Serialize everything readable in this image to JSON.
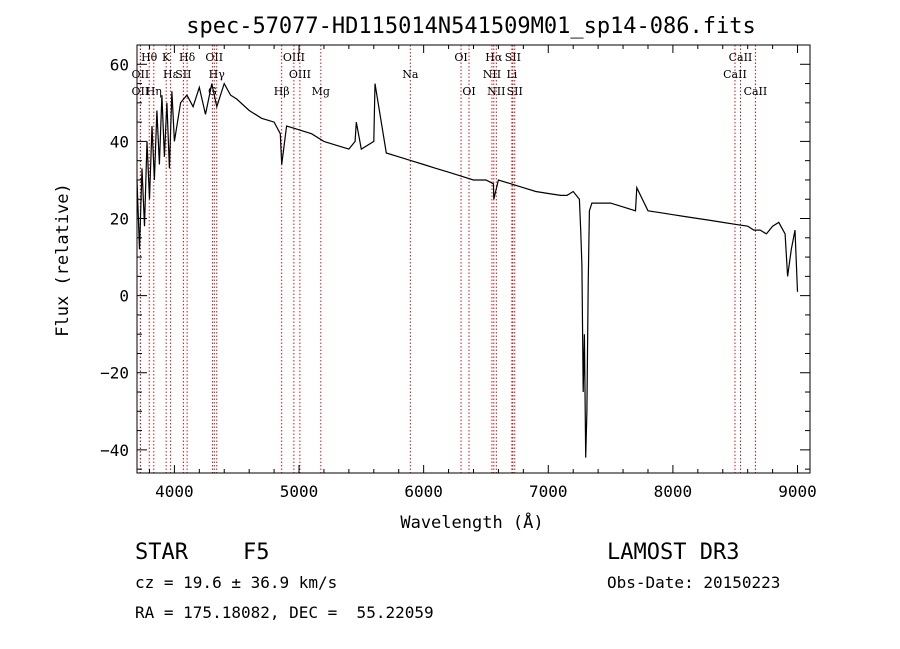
{
  "chart_data": {
    "type": "line",
    "title": "spec-57077-HD115014N541509M01_sp14-086.fits",
    "xlabel": "Wavelength (Å)",
    "ylabel": "Flux (relative)",
    "xlim": [
      3700,
      9100
    ],
    "ylim": [
      -46,
      65
    ],
    "xticks": [
      4000,
      5000,
      6000,
      7000,
      8000,
      9000
    ],
    "yticks": [
      -40,
      -20,
      0,
      20,
      40,
      60
    ],
    "grid": false,
    "series": [
      {
        "name": "flux",
        "x": [
          3700,
          3720,
          3740,
          3760,
          3780,
          3800,
          3820,
          3840,
          3860,
          3880,
          3900,
          3920,
          3940,
          3960,
          3980,
          4000,
          4050,
          4100,
          4150,
          4200,
          4250,
          4300,
          4340,
          4400,
          4450,
          4500,
          4600,
          4700,
          4800,
          4850,
          4861,
          4900,
          5000,
          5100,
          5200,
          5300,
          5400,
          5450,
          5460,
          5500,
          5600,
          5610,
          5700,
          5800,
          5900,
          6000,
          6100,
          6200,
          6300,
          6400,
          6500,
          6560,
          6563,
          6600,
          6700,
          6800,
          6900,
          7000,
          7100,
          7150,
          7200,
          7250,
          7260,
          7270,
          7280,
          7290,
          7300,
          7310,
          7320,
          7330,
          7350,
          7400,
          7500,
          7600,
          7700,
          7710,
          7800,
          7900,
          8000,
          8100,
          8200,
          8300,
          8400,
          8500,
          8600,
          8650,
          8700,
          8750,
          8800,
          8850,
          8900,
          8920,
          8950,
          8980,
          9000
        ],
        "y": [
          30,
          12,
          33,
          18,
          40,
          25,
          44,
          30,
          48,
          34,
          52,
          36,
          50,
          33,
          53,
          40,
          50,
          52,
          49,
          54,
          47,
          55,
          49,
          55,
          52,
          51,
          48,
          46,
          45,
          42,
          34,
          44,
          43,
          42,
          40,
          39,
          38,
          40,
          45,
          38,
          40,
          55,
          37,
          36,
          35,
          34,
          33,
          32,
          31,
          30,
          30,
          29,
          25,
          30,
          29,
          28,
          27,
          26.5,
          26,
          26,
          27,
          25,
          17,
          8,
          -25,
          -10,
          -42,
          -30,
          3,
          22,
          24,
          24,
          24,
          23,
          22,
          28,
          22,
          21.5,
          21,
          20.5,
          20,
          19.5,
          19,
          18.5,
          18,
          17,
          17,
          16,
          18,
          19,
          16,
          5,
          12,
          17,
          1
        ]
      }
    ],
    "line_markers": [
      {
        "label": "Hθ",
        "x": 3798,
        "row": 0
      },
      {
        "label": "OII",
        "x": 3727,
        "row": 1
      },
      {
        "label": "OII",
        "x": 3727,
        "row": 2
      },
      {
        "label": "Hη",
        "x": 3835,
        "row": 2
      },
      {
        "label": "K",
        "x": 3934,
        "row": 0
      },
      {
        "label": "Hε",
        "x": 3970,
        "row": 1
      },
      {
        "label": "SII",
        "x": 4072,
        "row": 1
      },
      {
        "label": "Hδ",
        "x": 4102,
        "row": 0
      },
      {
        "label": "OII",
        "x": 4320,
        "row": 0
      },
      {
        "label": "Hγ",
        "x": 4340,
        "row": 1
      },
      {
        "label": "G",
        "x": 4305,
        "row": 2
      },
      {
        "label": "OIII",
        "x": 4959,
        "row": 0
      },
      {
        "label": "OIII",
        "x": 5007,
        "row": 1
      },
      {
        "label": "Hβ",
        "x": 4861,
        "row": 2
      },
      {
        "label": "Mg",
        "x": 5175,
        "row": 2
      },
      {
        "label": "Na",
        "x": 5893,
        "row": 1
      },
      {
        "label": "OI",
        "x": 6300,
        "row": 0
      },
      {
        "label": "OI",
        "x": 6364,
        "row": 2
      },
      {
        "label": "Hα",
        "x": 6563,
        "row": 0
      },
      {
        "label": "NII",
        "x": 6548,
        "row": 1
      },
      {
        "label": "NII",
        "x": 6583,
        "row": 2
      },
      {
        "label": "SII",
        "x": 6716,
        "row": 0
      },
      {
        "label": "Li",
        "x": 6708,
        "row": 1
      },
      {
        "label": "SII",
        "x": 6731,
        "row": 2
      },
      {
        "label": "CaII",
        "x": 8542,
        "row": 0
      },
      {
        "label": "CaII",
        "x": 8498,
        "row": 1
      },
      {
        "label": "CaII",
        "x": 8662,
        "row": 2
      }
    ]
  },
  "info": {
    "class_label": "STAR",
    "subclass": "F5",
    "cz": "cz = 19.6 ± 36.9 km/s",
    "radec": "RA = 175.18082, DEC =  55.22059",
    "survey": "LAMOST DR3",
    "obs_date": "Obs-Date: 20150223"
  },
  "colors": {
    "axis": "#000000",
    "marker": "#c00000"
  }
}
